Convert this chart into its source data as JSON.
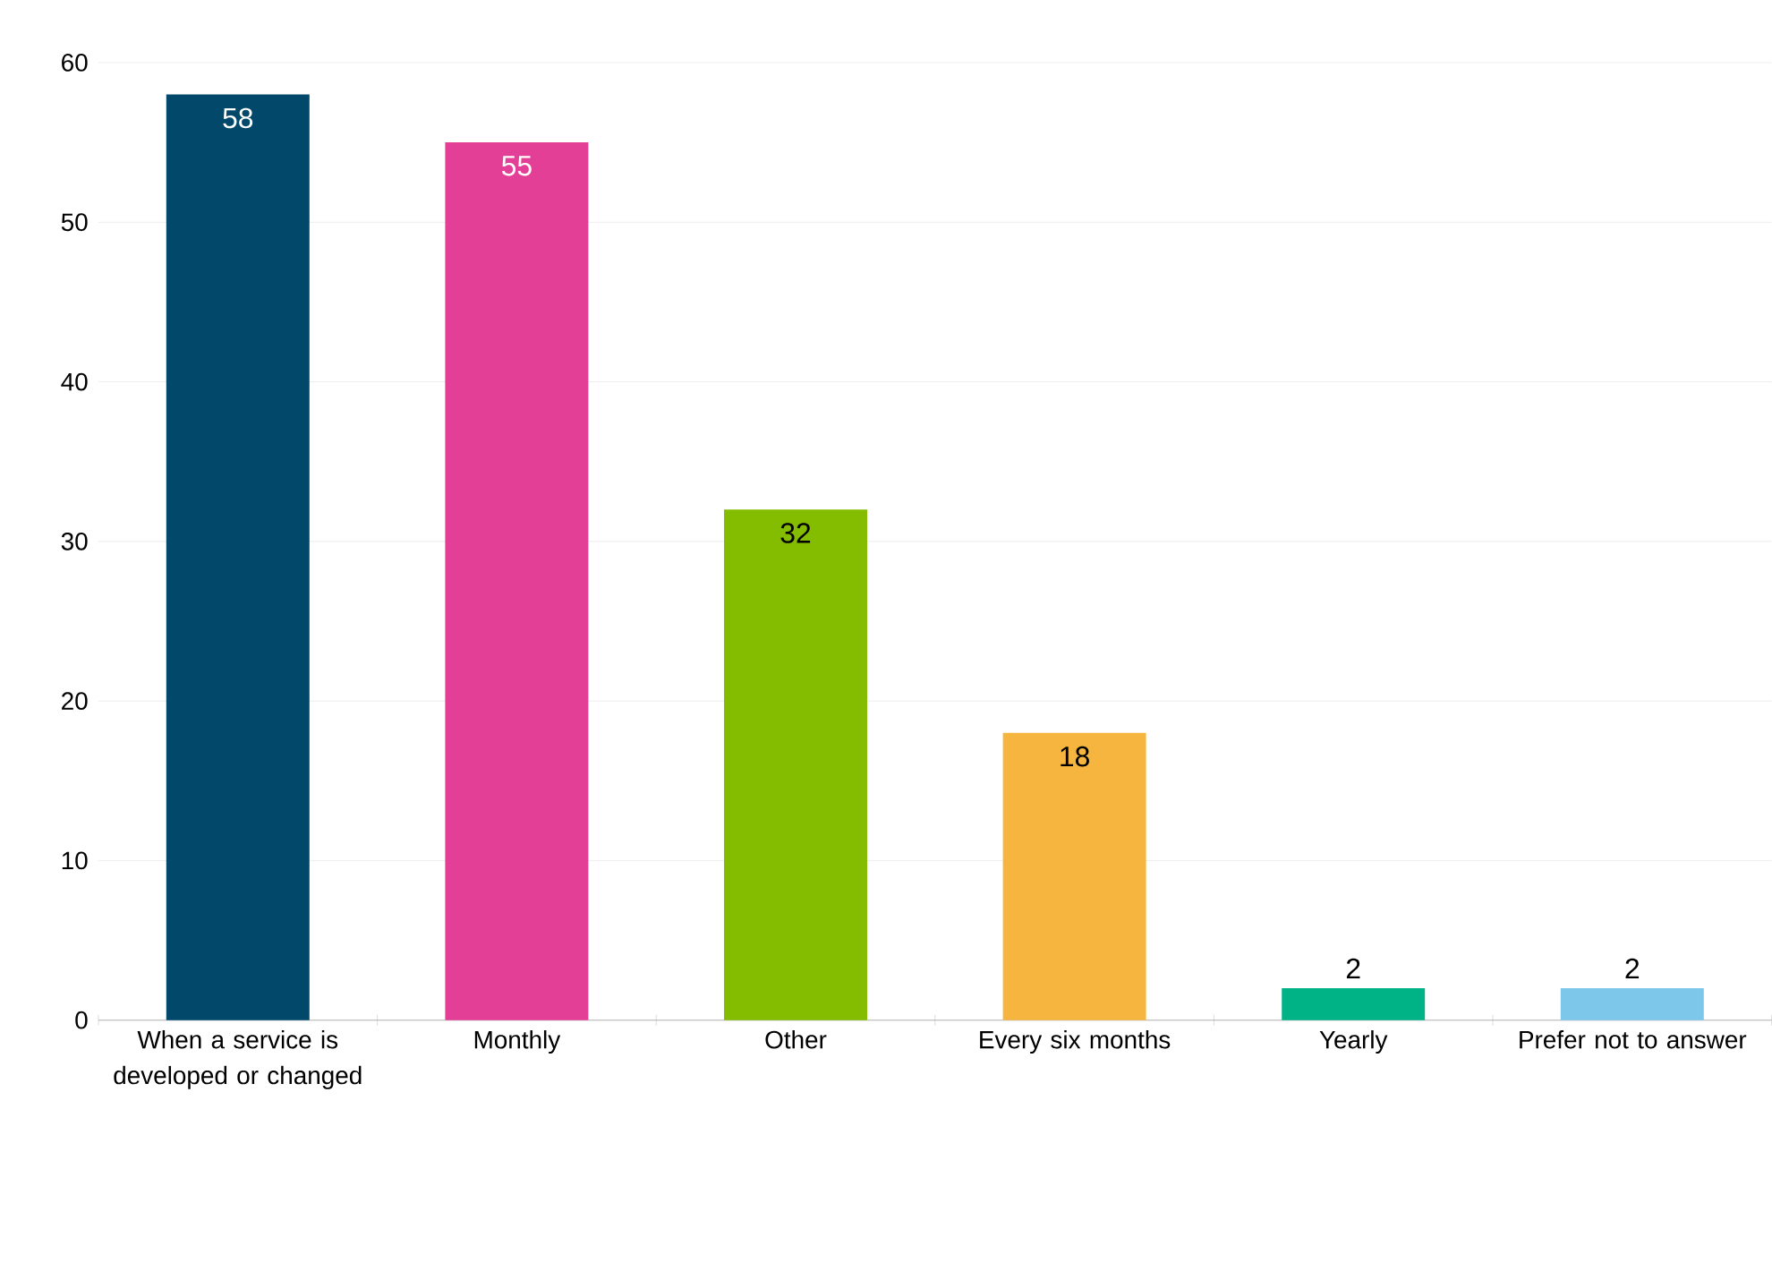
{
  "chart_data": {
    "type": "bar",
    "categories": [
      "When a service is developed or changed",
      "Monthly",
      "Other",
      "Every six months",
      "Yearly",
      "Prefer not to answer"
    ],
    "values": [
      58,
      55,
      32,
      18,
      2,
      2
    ],
    "colors": [
      "#02486a",
      "#e43f96",
      "#84bc00",
      "#f6b53f",
      "#00b386",
      "#7dc7ea"
    ],
    "ylim": [
      0,
      60
    ],
    "yticks": [
      0,
      10,
      20,
      30,
      40,
      50,
      60
    ],
    "grid": "y",
    "data_labels": true
  }
}
